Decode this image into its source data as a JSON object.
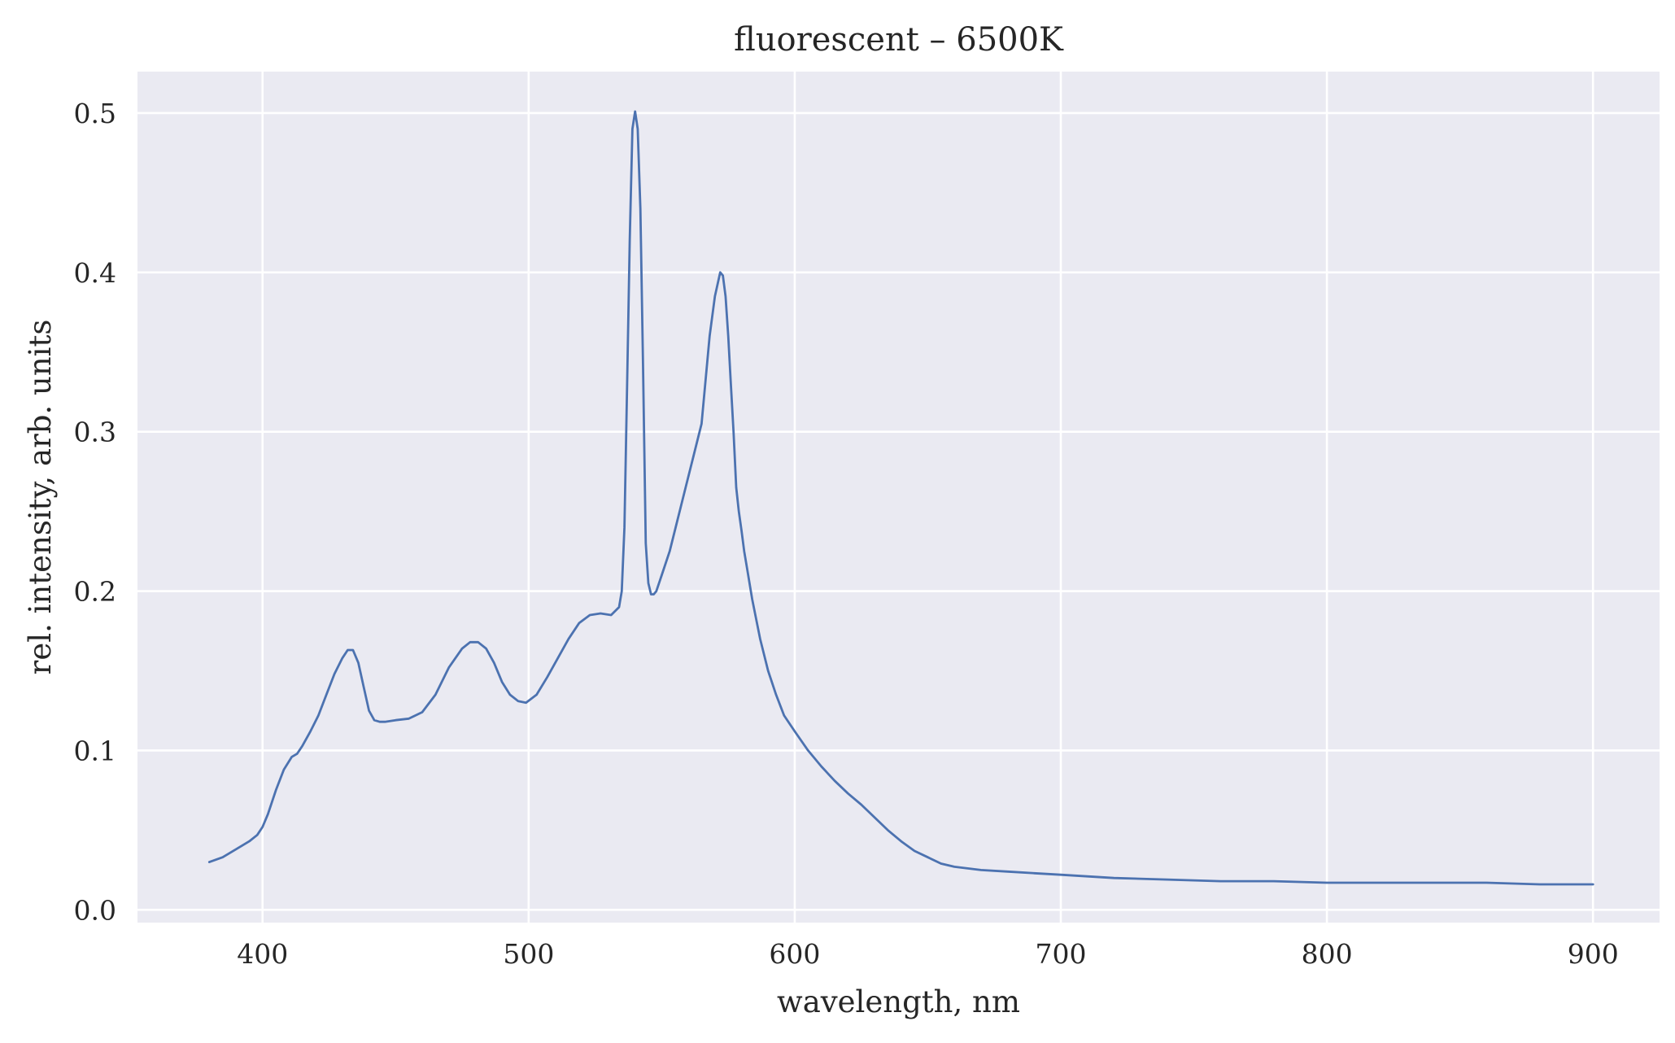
{
  "chart_data": {
    "type": "line",
    "title": "fluorescent – 6500K",
    "xlabel": "wavelength, nm",
    "ylabel": "rel. intensity, arb. units",
    "xlim": [
      353,
      925
    ],
    "ylim": [
      -0.008,
      0.526
    ],
    "x_ticks": [
      400,
      500,
      600,
      700,
      800,
      900
    ],
    "x_tick_labels": [
      "400",
      "500",
      "600",
      "700",
      "800",
      "900"
    ],
    "y_ticks": [
      0.0,
      0.1,
      0.2,
      0.3,
      0.4,
      0.5
    ],
    "y_tick_labels": [
      "0.0",
      "0.1",
      "0.2",
      "0.3",
      "0.4",
      "0.5"
    ],
    "grid": true,
    "legend": false,
    "colors": {
      "background": "#eaeaf2",
      "grid": "#ffffff",
      "line": "#4c72b0",
      "text": "#262626"
    },
    "series": [
      {
        "x": [
          380,
          385,
          390,
          395,
          398,
          400,
          402,
          405,
          408,
          411,
          413,
          415,
          418,
          421,
          424,
          427,
          430,
          432,
          434,
          436,
          438,
          440,
          442,
          444,
          446,
          450,
          455,
          460,
          465,
          470,
          475,
          478,
          481,
          484,
          487,
          490,
          493,
          496,
          499,
          503,
          507,
          511,
          515,
          519,
          523,
          527,
          531,
          534,
          535,
          536,
          537,
          538,
          539,
          540,
          541,
          542,
          543,
          544,
          545,
          546,
          547,
          548,
          549,
          550,
          553,
          556,
          559,
          562,
          565,
          568,
          570,
          572,
          573,
          574,
          575,
          576,
          577,
          578,
          579,
          580,
          581,
          582,
          584,
          587,
          590,
          593,
          596,
          600,
          605,
          610,
          615,
          620,
          625,
          630,
          635,
          640,
          645,
          650,
          655,
          660,
          670,
          680,
          690,
          700,
          720,
          740,
          760,
          780,
          800,
          820,
          840,
          860,
          880,
          900
        ],
        "y": [
          0.03,
          0.033,
          0.038,
          0.043,
          0.047,
          0.052,
          0.06,
          0.075,
          0.088,
          0.096,
          0.098,
          0.103,
          0.112,
          0.122,
          0.135,
          0.148,
          0.158,
          0.163,
          0.163,
          0.155,
          0.14,
          0.125,
          0.119,
          0.118,
          0.118,
          0.119,
          0.12,
          0.124,
          0.135,
          0.152,
          0.164,
          0.168,
          0.168,
          0.164,
          0.155,
          0.143,
          0.135,
          0.131,
          0.13,
          0.135,
          0.146,
          0.158,
          0.17,
          0.18,
          0.185,
          0.186,
          0.185,
          0.19,
          0.2,
          0.24,
          0.33,
          0.42,
          0.49,
          0.501,
          0.49,
          0.44,
          0.34,
          0.23,
          0.205,
          0.198,
          0.198,
          0.2,
          0.205,
          0.21,
          0.225,
          0.245,
          0.265,
          0.285,
          0.305,
          0.36,
          0.385,
          0.4,
          0.398,
          0.385,
          0.36,
          0.33,
          0.3,
          0.265,
          0.25,
          0.238,
          0.225,
          0.215,
          0.195,
          0.17,
          0.15,
          0.135,
          0.122,
          0.112,
          0.1,
          0.09,
          0.081,
          0.073,
          0.066,
          0.058,
          0.05,
          0.043,
          0.037,
          0.033,
          0.029,
          0.027,
          0.025,
          0.024,
          0.023,
          0.022,
          0.02,
          0.019,
          0.018,
          0.018,
          0.017,
          0.017,
          0.017,
          0.017,
          0.016,
          0.016
        ]
      }
    ]
  }
}
